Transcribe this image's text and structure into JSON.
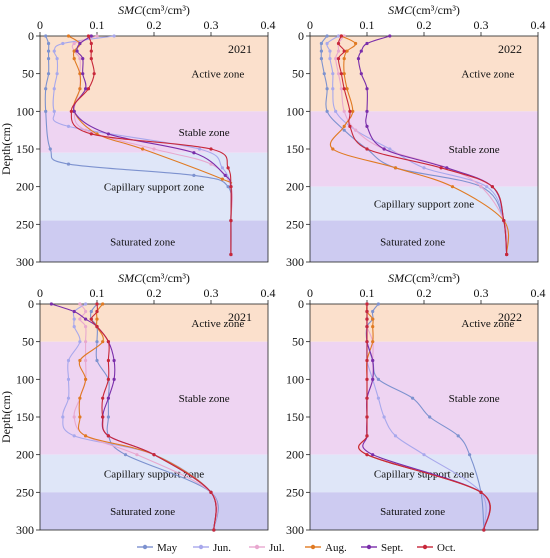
{
  "colors": {
    "zone_active": "#fbe0cc",
    "zone_stable": "#eed4f2",
    "zone_capillary": "#dfe6f8",
    "zone_saturated": "#cdcbf1"
  },
  "legend": [
    {
      "name": "May",
      "color": "#7d92cf"
    },
    {
      "name": "Jun.",
      "color": "#a8a8ec"
    },
    {
      "name": "Jul.",
      "color": "#e8a8cf"
    },
    {
      "name": "Aug.",
      "color": "#e07a22"
    },
    {
      "name": "Sept.",
      "color": "#7a2eaa"
    },
    {
      "name": "Oct.",
      "color": "#c8283a"
    }
  ],
  "chart_data": [
    {
      "type": "line",
      "year": "2021",
      "xlabel_var": "SMC",
      "xlabel_unit": "(cm³/cm³)",
      "ylabel": "Depth(cm)",
      "xlim": [
        0,
        0.4
      ],
      "ylim": [
        0,
        300
      ],
      "xticks": [
        "0",
        "0.1",
        "0.2",
        "0.3",
        "0.4"
      ],
      "yticks": [
        "0",
        "50",
        "100",
        "150",
        "200",
        "250",
        "300"
      ],
      "zones": [
        {
          "name": "Active zone",
          "from": 0,
          "to": 100,
          "color_key": "zone_active"
        },
        {
          "name": "Stable zone",
          "from": 100,
          "to": 155,
          "color_key": "zone_stable"
        },
        {
          "name": "Capillary support zone",
          "from": 155,
          "to": 245,
          "color_key": "zone_capillary"
        },
        {
          "name": "Saturated zone",
          "from": 245,
          "to": 300,
          "color_key": "zone_saturated"
        }
      ],
      "series": [
        {
          "name": "May",
          "x": [
            0.01,
            0.015,
            0.015,
            0.015,
            0.015,
            0.01,
            0.01,
            0.018,
            0.05,
            0.27,
            0.33,
            0.335,
            0.335
          ],
          "y": [
            0,
            10,
            20,
            30,
            50,
            70,
            100,
            150,
            170,
            185,
            200,
            245,
            290
          ]
        },
        {
          "name": "Jun.",
          "x": [
            0.13,
            0.04,
            0.025,
            0.03,
            0.03,
            0.025,
            0.025,
            0.05,
            0.28,
            0.32,
            0.335,
            0.335,
            0.335
          ],
          "y": [
            0,
            10,
            20,
            30,
            50,
            70,
            100,
            120,
            150,
            175,
            200,
            245,
            290
          ]
        },
        {
          "name": "Jul.",
          "x": [
            0.1,
            0.06,
            0.06,
            0.07,
            0.07,
            0.07,
            0.06,
            0.08,
            0.2,
            0.3,
            0.335,
            0.335,
            0.335
          ],
          "y": [
            0,
            10,
            20,
            30,
            50,
            70,
            100,
            125,
            150,
            170,
            200,
            245,
            290
          ]
        },
        {
          "name": "Aug.",
          "x": [
            0.05,
            0.07,
            0.06,
            0.06,
            0.07,
            0.07,
            0.06,
            0.1,
            0.18,
            0.32,
            0.335,
            0.335,
            0.335
          ],
          "y": [
            0,
            10,
            20,
            30,
            50,
            70,
            100,
            130,
            150,
            190,
            200,
            245,
            290
          ]
        },
        {
          "name": "Sept.",
          "x": [
            0.09,
            0.07,
            0.065,
            0.075,
            0.075,
            0.08,
            0.06,
            0.12,
            0.27,
            0.325,
            0.335,
            0.335,
            0.335
          ],
          "y": [
            0,
            10,
            20,
            30,
            50,
            70,
            100,
            130,
            155,
            185,
            200,
            245,
            290
          ]
        },
        {
          "name": "Oct.",
          "x": [
            0.085,
            0.09,
            0.09,
            0.09,
            0.095,
            0.085,
            0.055,
            0.09,
            0.3,
            0.33,
            0.335,
            0.335,
            0.335
          ],
          "y": [
            0,
            10,
            20,
            30,
            50,
            70,
            100,
            130,
            150,
            175,
            200,
            245,
            290
          ]
        }
      ]
    },
    {
      "type": "line",
      "year": "2022",
      "xlabel_var": "SMC",
      "xlabel_unit": "(cm³/cm³)",
      "ylabel": "",
      "xlim": [
        0,
        0.4
      ],
      "ylim": [
        0,
        300
      ],
      "xticks": [
        "0",
        "0.1",
        "0.2",
        "0.3",
        "0.4"
      ],
      "yticks": [
        "0",
        "50",
        "100",
        "150",
        "200",
        "250",
        "300"
      ],
      "zones": [
        {
          "name": "Active zone",
          "from": 0,
          "to": 100,
          "color_key": "zone_active"
        },
        {
          "name": "Stable zone",
          "from": 100,
          "to": 200,
          "color_key": "zone_stable"
        },
        {
          "name": "Capillary support zone",
          "from": 200,
          "to": 245,
          "color_key": "zone_capillary"
        },
        {
          "name": "Saturated zone",
          "from": 245,
          "to": 300,
          "color_key": "zone_saturated"
        }
      ],
      "series": [
        {
          "name": "May",
          "x": [
            0.03,
            0.02,
            0.02,
            0.02,
            0.025,
            0.03,
            0.03,
            0.06,
            0.1,
            0.15,
            0.3,
            0.34,
            0.345
          ],
          "y": [
            0,
            10,
            20,
            30,
            50,
            70,
            100,
            125,
            150,
            175,
            200,
            245,
            290
          ]
        },
        {
          "name": "Jun.",
          "x": [
            0.05,
            0.03,
            0.035,
            0.035,
            0.04,
            0.04,
            0.045,
            0.08,
            0.14,
            0.2,
            0.31,
            0.34,
            0.345
          ],
          "y": [
            0,
            10,
            20,
            30,
            50,
            70,
            100,
            125,
            150,
            175,
            200,
            245,
            290
          ]
        },
        {
          "name": "Jul.",
          "x": [
            0.06,
            0.05,
            0.05,
            0.045,
            0.05,
            0.055,
            0.06,
            0.08,
            0.13,
            0.24,
            0.3,
            0.34,
            0.345
          ],
          "y": [
            0,
            10,
            20,
            30,
            50,
            70,
            100,
            125,
            150,
            175,
            200,
            245,
            290
          ]
        },
        {
          "name": "Aug.",
          "x": [
            0.055,
            0.08,
            0.065,
            0.06,
            0.06,
            0.065,
            0.075,
            0.06,
            0.04,
            0.15,
            0.25,
            0.34,
            0.345
          ],
          "y": [
            0,
            10,
            20,
            30,
            50,
            70,
            100,
            120,
            150,
            175,
            200,
            245,
            290
          ]
        },
        {
          "name": "Sept.",
          "x": [
            0.14,
            0.1,
            0.09,
            0.085,
            0.09,
            0.1,
            0.1,
            0.1,
            0.13,
            0.24,
            0.32,
            0.34,
            0.345
          ],
          "y": [
            0,
            10,
            20,
            30,
            50,
            70,
            100,
            120,
            150,
            175,
            200,
            245,
            290
          ]
        },
        {
          "name": "Oct.",
          "x": [
            0.055,
            0.05,
            0.06,
            0.05,
            0.055,
            0.06,
            0.07,
            0.07,
            0.1,
            0.23,
            0.32,
            0.34,
            0.345
          ],
          "y": [
            0,
            10,
            20,
            30,
            50,
            70,
            100,
            120,
            150,
            175,
            200,
            245,
            290
          ]
        }
      ]
    },
    {
      "type": "line",
      "year": "2021",
      "xlabel_var": "SMC",
      "xlabel_unit": "(cm³/cm³)",
      "ylabel": "Depth(cm)",
      "xlim": [
        0,
        0.4
      ],
      "ylim": [
        0,
        300
      ],
      "xticks": [
        "0",
        "0.1",
        "0.2",
        "0.3",
        "0.4"
      ],
      "yticks": [
        "0",
        "50",
        "100",
        "150",
        "200",
        "250",
        "300"
      ],
      "zones": [
        {
          "name": "Active zone",
          "from": 0,
          "to": 50,
          "color_key": "zone_active"
        },
        {
          "name": "Stable zone",
          "from": 50,
          "to": 200,
          "color_key": "zone_stable"
        },
        {
          "name": "Capillary support zone",
          "from": 200,
          "to": 250,
          "color_key": "zone_capillary"
        },
        {
          "name": "Saturated zone",
          "from": 250,
          "to": 300,
          "color_key": "zone_saturated"
        }
      ],
      "series": [
        {
          "name": "May",
          "x": [
            0.1,
            0.09,
            0.09,
            0.1,
            0.1,
            0.1,
            0.12,
            0.12,
            0.12,
            0.12,
            0.15,
            0.3,
            0.305
          ],
          "y": [
            0,
            10,
            20,
            30,
            50,
            75,
            100,
            125,
            150,
            175,
            200,
            250,
            300
          ]
        },
        {
          "name": "Jun.",
          "x": [
            0.08,
            0.06,
            0.06,
            0.06,
            0.07,
            0.05,
            0.05,
            0.05,
            0.04,
            0.06,
            0.2,
            0.3,
            0.305
          ],
          "y": [
            0,
            10,
            20,
            30,
            50,
            75,
            100,
            125,
            150,
            175,
            200,
            250,
            300
          ]
        },
        {
          "name": "Jul.",
          "x": [
            0.07,
            0.08,
            0.07,
            0.08,
            0.08,
            0.08,
            0.08,
            0.07,
            0.06,
            0.08,
            0.17,
            0.3,
            0.305
          ],
          "y": [
            0,
            10,
            20,
            30,
            50,
            75,
            100,
            125,
            150,
            175,
            200,
            250,
            300
          ]
        },
        {
          "name": "Aug.",
          "x": [
            0.11,
            0.1,
            0.1,
            0.1,
            0.11,
            0.07,
            0.08,
            0.07,
            0.07,
            0.08,
            0.2,
            0.3,
            0.305
          ],
          "y": [
            0,
            10,
            20,
            30,
            50,
            75,
            100,
            125,
            150,
            175,
            200,
            250,
            300
          ]
        },
        {
          "name": "Sept.",
          "x": [
            0.02,
            0.06,
            0.08,
            0.1,
            0.12,
            0.13,
            0.13,
            0.12,
            0.11,
            0.12,
            0.2,
            0.3,
            0.305
          ],
          "y": [
            0,
            10,
            20,
            30,
            50,
            75,
            100,
            125,
            150,
            175,
            200,
            250,
            300
          ]
        },
        {
          "name": "Oct.",
          "x": [
            0.1,
            0.1,
            0.09,
            0.1,
            0.12,
            0.12,
            0.12,
            0.11,
            0.11,
            0.12,
            0.2,
            0.3,
            0.305
          ],
          "y": [
            0,
            10,
            20,
            30,
            50,
            75,
            100,
            125,
            150,
            175,
            200,
            250,
            300
          ]
        }
      ]
    },
    {
      "type": "line",
      "year": "2022",
      "xlabel_var": "SMC",
      "xlabel_unit": "(cm³/cm³)",
      "ylabel": "",
      "xlim": [
        0,
        0.4
      ],
      "ylim": [
        0,
        300
      ],
      "xticks": [
        "0",
        "0.1",
        "0.2",
        "0.3",
        "0.4"
      ],
      "yticks": [
        "0",
        "50",
        "100",
        "150",
        "200",
        "250",
        "300"
      ],
      "zones": [
        {
          "name": "Active zone",
          "from": 0,
          "to": 50,
          "color_key": "zone_active"
        },
        {
          "name": "Stable zone",
          "from": 50,
          "to": 200,
          "color_key": "zone_stable"
        },
        {
          "name": "Capillary support zone",
          "from": 200,
          "to": 250,
          "color_key": "zone_capillary"
        },
        {
          "name": "Saturated zone",
          "from": 250,
          "to": 300,
          "color_key": "zone_saturated"
        }
      ],
      "series": [
        {
          "name": "May",
          "x": [
            0.12,
            0.11,
            0.11,
            0.1,
            0.1,
            0.11,
            0.12,
            0.18,
            0.21,
            0.26,
            0.28,
            0.3,
            0.305
          ],
          "y": [
            0,
            10,
            20,
            30,
            50,
            75,
            100,
            125,
            150,
            175,
            200,
            250,
            300
          ]
        },
        {
          "name": "Jun.",
          "x": [
            0.1,
            0.1,
            0.1,
            0.1,
            0.1,
            0.1,
            0.11,
            0.12,
            0.13,
            0.15,
            0.2,
            0.3,
            0.305
          ],
          "y": [
            0,
            10,
            20,
            30,
            50,
            75,
            100,
            125,
            150,
            175,
            200,
            250,
            300
          ]
        },
        {
          "name": "Jul.",
          "x": [
            0.1,
            0.1,
            0.1,
            0.1,
            0.11,
            0.11,
            0.11,
            0.1,
            0.1,
            0.1,
            0.1,
            0.3,
            0.305
          ],
          "y": [
            0,
            10,
            20,
            30,
            50,
            75,
            100,
            125,
            150,
            175,
            200,
            250,
            300
          ]
        },
        {
          "name": "Aug.",
          "x": [
            0.1,
            0.1,
            0.11,
            0.11,
            0.11,
            0.1,
            0.1,
            0.1,
            0.1,
            0.1,
            0.1,
            0.3,
            0.305
          ],
          "y": [
            0,
            10,
            20,
            30,
            50,
            75,
            100,
            125,
            150,
            175,
            200,
            250,
            300
          ]
        },
        {
          "name": "Sept.",
          "x": [
            0.1,
            0.1,
            0.1,
            0.1,
            0.1,
            0.11,
            0.11,
            0.1,
            0.1,
            0.1,
            0.11,
            0.3,
            0.305
          ],
          "y": [
            0,
            10,
            20,
            30,
            50,
            75,
            100,
            125,
            150,
            175,
            200,
            250,
            300
          ]
        },
        {
          "name": "Oct.",
          "x": [
            0.1,
            0.1,
            0.1,
            0.1,
            0.1,
            0.1,
            0.1,
            0.1,
            0.1,
            0.1,
            0.1,
            0.3,
            0.305
          ],
          "y": [
            0,
            10,
            20,
            30,
            50,
            75,
            100,
            125,
            150,
            175,
            200,
            250,
            300
          ]
        }
      ]
    }
  ]
}
